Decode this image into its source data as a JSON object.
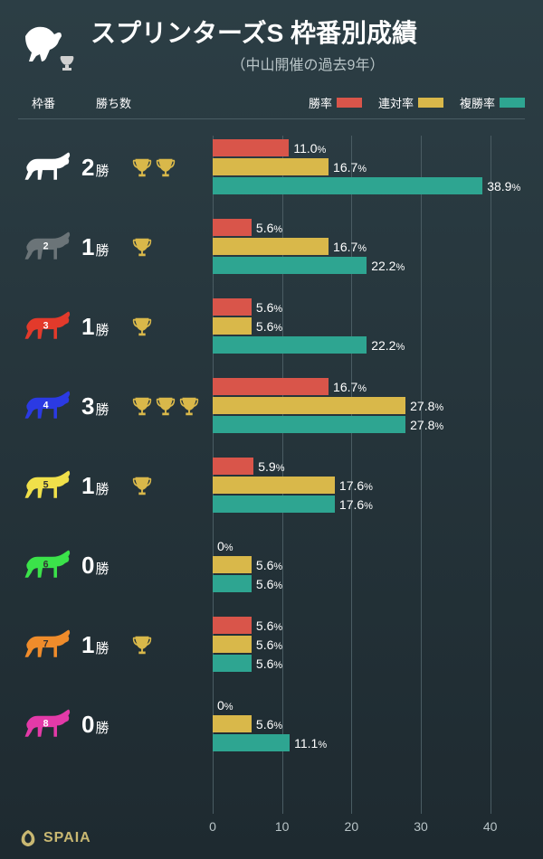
{
  "colors": {
    "bg_top": "#2c3e45",
    "bg_bottom": "#1e2a30",
    "grid": "#4a5c63",
    "text": "#ffffff",
    "text_muted": "#b8c4c7",
    "bar_win": "#d9554a",
    "bar_place": "#d9b84a",
    "bar_show": "#2ea591",
    "trophy": "#d9b84a",
    "footer_accent": "#c9b872"
  },
  "header": {
    "title": "スプリンターズS 枠番別成績",
    "subtitle": "（中山開催の過去9年）"
  },
  "legend": {
    "col_gate": "枠番",
    "col_wins": "勝ち数",
    "metric_win": "勝率",
    "metric_place": "連対率",
    "metric_show": "複勝率"
  },
  "axis": {
    "min": 0,
    "max": 45,
    "ticks": [
      0,
      10,
      20,
      30,
      40
    ]
  },
  "wins_unit": "勝",
  "pct_unit": "%",
  "rows": [
    {
      "gate": 1,
      "color": "#ffffff",
      "number_color": "#ffffff",
      "wins": 2,
      "win_pct": 11.0,
      "place_pct": 16.7,
      "show_pct": 38.9,
      "show_number": false
    },
    {
      "gate": 2,
      "color": "#6b7478",
      "number_color": "#ffffff",
      "wins": 1,
      "win_pct": 5.6,
      "place_pct": 16.7,
      "show_pct": 22.2,
      "show_number": true
    },
    {
      "gate": 3,
      "color": "#e33a2b",
      "number_color": "#ffffff",
      "wins": 1,
      "win_pct": 5.6,
      "place_pct": 5.6,
      "show_pct": 22.2,
      "show_number": true
    },
    {
      "gate": 4,
      "color": "#2b3ae3",
      "number_color": "#ffffff",
      "wins": 3,
      "win_pct": 16.7,
      "place_pct": 27.8,
      "show_pct": 27.8,
      "show_number": true
    },
    {
      "gate": 5,
      "color": "#f0e04a",
      "number_color": "#333333",
      "wins": 1,
      "win_pct": 5.9,
      "place_pct": 17.6,
      "show_pct": 17.6,
      "show_number": true
    },
    {
      "gate": 6,
      "color": "#3be34a",
      "number_color": "#333333",
      "wins": 0,
      "win_pct": 0,
      "place_pct": 5.6,
      "show_pct": 5.6,
      "show_number": true
    },
    {
      "gate": 7,
      "color": "#f08c2b",
      "number_color": "#333333",
      "wins": 1,
      "win_pct": 5.6,
      "place_pct": 5.6,
      "show_pct": 5.6,
      "show_number": true
    },
    {
      "gate": 8,
      "color": "#e33aa8",
      "number_color": "#ffffff",
      "wins": 0,
      "win_pct": 0,
      "place_pct": 5.6,
      "show_pct": 11.1,
      "show_number": true
    }
  ],
  "footer": {
    "brand": "SPAIA"
  }
}
